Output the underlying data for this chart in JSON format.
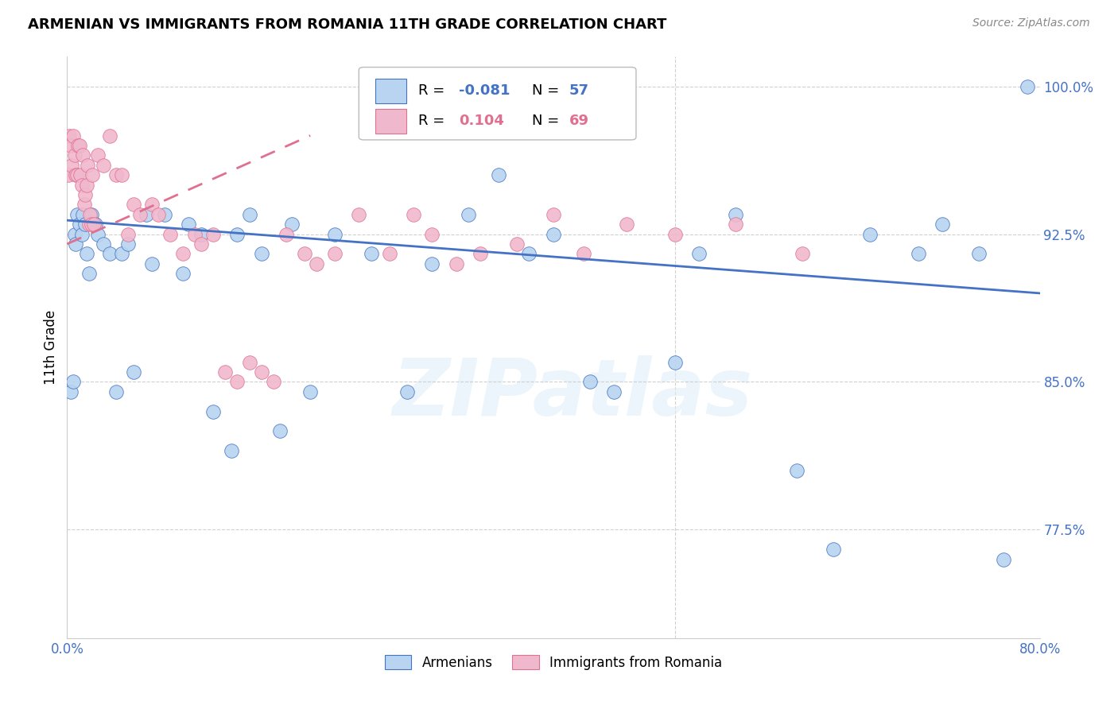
{
  "title": "ARMENIAN VS IMMIGRANTS FROM ROMANIA 11TH GRADE CORRELATION CHART",
  "source": "Source: ZipAtlas.com",
  "ylabel": "11th Grade",
  "xmin": 0.0,
  "xmax": 80.0,
  "ymin": 72.0,
  "ymax": 101.5,
  "watermark": "ZIPatlas",
  "blue_color": "#b8d4f0",
  "pink_color": "#f0b8cc",
  "trend_blue": "#4472c4",
  "trend_pink": "#e07090",
  "blue_scatter_x": [
    0.3,
    0.5,
    0.6,
    0.7,
    0.8,
    1.0,
    1.2,
    1.3,
    1.5,
    1.6,
    1.8,
    2.0,
    2.3,
    2.5,
    3.0,
    3.5,
    4.0,
    4.5,
    5.0,
    5.5,
    6.5,
    7.0,
    8.0,
    9.5,
    10.0,
    11.0,
    12.0,
    13.5,
    14.0,
    15.0,
    16.0,
    17.5,
    18.5,
    20.0,
    22.0,
    25.0,
    28.0,
    30.0,
    33.0,
    35.5,
    38.0,
    40.0,
    43.0,
    45.0,
    50.0,
    52.0,
    55.0,
    60.0,
    63.0,
    66.0,
    70.0,
    72.0,
    75.0,
    77.0,
    79.0
  ],
  "blue_scatter_y": [
    84.5,
    85.0,
    92.5,
    92.0,
    93.5,
    93.0,
    92.5,
    93.5,
    93.0,
    91.5,
    90.5,
    93.5,
    93.0,
    92.5,
    92.0,
    91.5,
    84.5,
    91.5,
    92.0,
    85.5,
    93.5,
    91.0,
    93.5,
    90.5,
    93.0,
    92.5,
    83.5,
    81.5,
    92.5,
    93.5,
    91.5,
    82.5,
    93.0,
    84.5,
    92.5,
    91.5,
    84.5,
    91.0,
    93.5,
    95.5,
    91.5,
    92.5,
    85.0,
    84.5,
    86.0,
    91.5,
    93.5,
    80.5,
    76.5,
    92.5,
    91.5,
    93.0,
    91.5,
    76.0,
    100.0
  ],
  "pink_scatter_x": [
    0.1,
    0.2,
    0.3,
    0.4,
    0.5,
    0.6,
    0.7,
    0.8,
    0.9,
    1.0,
    1.1,
    1.2,
    1.3,
    1.4,
    1.5,
    1.6,
    1.7,
    1.8,
    1.9,
    2.0,
    2.1,
    2.2,
    2.5,
    3.0,
    3.5,
    4.0,
    4.5,
    5.0,
    5.5,
    6.0,
    7.0,
    7.5,
    8.5,
    9.5,
    10.5,
    11.0,
    12.0,
    13.0,
    14.0,
    15.0,
    16.0,
    17.0,
    18.0,
    19.5,
    20.5,
    22.0,
    24.0,
    26.5,
    28.5,
    30.0,
    32.0,
    34.0,
    37.0,
    40.0,
    42.5,
    46.0,
    50.0,
    55.0,
    60.5
  ],
  "pink_scatter_y": [
    95.5,
    97.5,
    97.0,
    96.0,
    97.5,
    96.5,
    95.5,
    95.5,
    97.0,
    97.0,
    95.5,
    95.0,
    96.5,
    94.0,
    94.5,
    95.0,
    96.0,
    93.0,
    93.5,
    93.0,
    95.5,
    93.0,
    96.5,
    96.0,
    97.5,
    95.5,
    95.5,
    92.5,
    94.0,
    93.5,
    94.0,
    93.5,
    92.5,
    91.5,
    92.5,
    92.0,
    92.5,
    85.5,
    85.0,
    86.0,
    85.5,
    85.0,
    92.5,
    91.5,
    91.0,
    91.5,
    93.5,
    91.5,
    93.5,
    92.5,
    91.0,
    91.5,
    92.0,
    93.5,
    91.5,
    93.0,
    92.5,
    93.0,
    91.5
  ]
}
